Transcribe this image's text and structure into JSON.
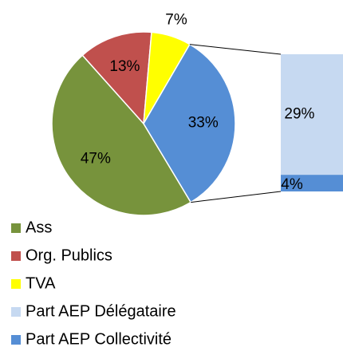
{
  "chart_data": {
    "type": "pie-of-bar",
    "categories": [
      "Ass",
      "Org. Publics",
      "TVA",
      "Part AEP Délégataire",
      "Part AEP Collectivité"
    ],
    "values": [
      47,
      13,
      7,
      29,
      4
    ],
    "value_labels": [
      "47%",
      "13%",
      "7%",
      "29%",
      "4%"
    ],
    "colors": [
      "#77933c",
      "#c0504d",
      "#ffff00",
      "#c6d9f1",
      "#558ed5"
    ],
    "other_value": 33,
    "other_value_label": "33%",
    "other_color": "#558ed5",
    "legend": "bottom-left"
  }
}
